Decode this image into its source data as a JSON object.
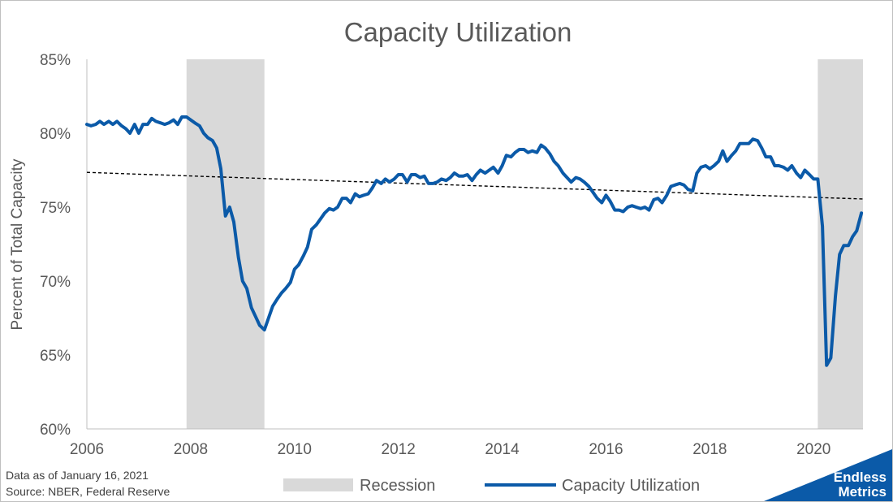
{
  "chart_data": {
    "type": "line",
    "title": "Capacity Utilization",
    "ylabel": "Percent of Total Capacity",
    "xlabel": "",
    "xlim": [
      2006,
      2020.95
    ],
    "ylim": [
      60,
      85
    ],
    "y_ticks": [
      60,
      65,
      70,
      75,
      80,
      85
    ],
    "y_tick_labels": [
      "60%",
      "65%",
      "70%",
      "75%",
      "80%",
      "85%"
    ],
    "x_ticks": [
      2006,
      2008,
      2010,
      2012,
      2014,
      2016,
      2018,
      2020
    ],
    "x_tick_labels": [
      "2006",
      "2008",
      "2010",
      "2012",
      "2014",
      "2016",
      "2018",
      "2020"
    ],
    "grid": false,
    "legend_position": "bottom",
    "recessions": [
      {
        "start": 2007.92,
        "end": 2009.42
      },
      {
        "start": 2020.08,
        "end": 2020.95
      }
    ],
    "series": [
      {
        "name": "Capacity Utilization",
        "color": "#0b5aa8",
        "x": [
          2006.0,
          2006.08,
          2006.17,
          2006.25,
          2006.33,
          2006.42,
          2006.5,
          2006.58,
          2006.67,
          2006.75,
          2006.83,
          2006.92,
          2007.0,
          2007.08,
          2007.17,
          2007.25,
          2007.33,
          2007.42,
          2007.5,
          2007.58,
          2007.67,
          2007.75,
          2007.83,
          2007.92,
          2008.0,
          2008.08,
          2008.17,
          2008.25,
          2008.33,
          2008.42,
          2008.5,
          2008.58,
          2008.67,
          2008.75,
          2008.83,
          2008.92,
          2009.0,
          2009.08,
          2009.17,
          2009.25,
          2009.33,
          2009.42,
          2009.5,
          2009.58,
          2009.67,
          2009.75,
          2009.83,
          2009.92,
          2010.0,
          2010.08,
          2010.17,
          2010.25,
          2010.33,
          2010.42,
          2010.5,
          2010.58,
          2010.67,
          2010.75,
          2010.83,
          2010.92,
          2011.0,
          2011.08,
          2011.17,
          2011.25,
          2011.33,
          2011.42,
          2011.5,
          2011.58,
          2011.67,
          2011.75,
          2011.83,
          2011.92,
          2012.0,
          2012.08,
          2012.17,
          2012.25,
          2012.33,
          2012.42,
          2012.5,
          2012.58,
          2012.67,
          2012.75,
          2012.83,
          2012.92,
          2013.0,
          2013.08,
          2013.17,
          2013.25,
          2013.33,
          2013.42,
          2013.5,
          2013.58,
          2013.67,
          2013.75,
          2013.83,
          2013.92,
          2014.0,
          2014.08,
          2014.17,
          2014.25,
          2014.33,
          2014.42,
          2014.5,
          2014.58,
          2014.67,
          2014.75,
          2014.83,
          2014.92,
          2015.0,
          2015.08,
          2015.17,
          2015.25,
          2015.33,
          2015.42,
          2015.5,
          2015.58,
          2015.67,
          2015.75,
          2015.83,
          2015.92,
          2016.0,
          2016.08,
          2016.17,
          2016.25,
          2016.33,
          2016.42,
          2016.5,
          2016.58,
          2016.67,
          2016.75,
          2016.83,
          2016.92,
          2017.0,
          2017.08,
          2017.17,
          2017.25,
          2017.33,
          2017.42,
          2017.5,
          2017.58,
          2017.67,
          2017.75,
          2017.83,
          2017.92,
          2018.0,
          2018.08,
          2018.17,
          2018.25,
          2018.33,
          2018.42,
          2018.5,
          2018.58,
          2018.67,
          2018.75,
          2018.83,
          2018.92,
          2019.0,
          2019.08,
          2019.17,
          2019.25,
          2019.33,
          2019.42,
          2019.5,
          2019.58,
          2019.67,
          2019.75,
          2019.83,
          2019.92,
          2020.0,
          2020.08,
          2020.17,
          2020.25,
          2020.33,
          2020.42,
          2020.5,
          2020.58,
          2020.67,
          2020.75,
          2020.83,
          2020.92
        ],
        "values": [
          80.6,
          80.5,
          80.6,
          80.8,
          80.6,
          80.8,
          80.6,
          80.8,
          80.5,
          80.3,
          80.0,
          80.6,
          80.0,
          80.6,
          80.6,
          81.0,
          80.8,
          80.7,
          80.6,
          80.7,
          80.9,
          80.6,
          81.1,
          81.1,
          80.9,
          80.7,
          80.5,
          80.0,
          79.7,
          79.5,
          79.0,
          77.6,
          74.4,
          75.0,
          74.0,
          71.6,
          70.0,
          69.5,
          68.2,
          67.6,
          67.0,
          66.7,
          67.5,
          68.3,
          68.8,
          69.2,
          69.5,
          69.9,
          70.8,
          71.1,
          71.7,
          72.3,
          73.5,
          73.8,
          74.2,
          74.6,
          74.9,
          74.8,
          75.0,
          75.6,
          75.6,
          75.3,
          75.9,
          75.7,
          75.8,
          75.9,
          76.3,
          76.8,
          76.6,
          76.9,
          76.7,
          76.9,
          77.2,
          77.2,
          76.7,
          77.2,
          77.2,
          77.0,
          77.1,
          76.6,
          76.6,
          76.7,
          76.9,
          76.8,
          77.0,
          77.3,
          77.1,
          77.1,
          77.2,
          76.8,
          77.2,
          77.5,
          77.3,
          77.5,
          77.7,
          77.3,
          77.8,
          78.5,
          78.4,
          78.7,
          78.9,
          78.9,
          78.7,
          78.8,
          78.7,
          79.2,
          79.0,
          78.6,
          78.1,
          77.8,
          77.3,
          77.0,
          76.7,
          77.0,
          76.9,
          76.7,
          76.4,
          76.0,
          75.6,
          75.3,
          75.8,
          75.4,
          74.8,
          74.8,
          74.7,
          75.0,
          75.1,
          75.0,
          74.9,
          75.0,
          74.8,
          75.5,
          75.6,
          75.3,
          75.8,
          76.4,
          76.5,
          76.6,
          76.5,
          76.2,
          76.1,
          77.3,
          77.7,
          77.8,
          77.6,
          77.8,
          78.1,
          78.8,
          78.1,
          78.5,
          78.8,
          79.3,
          79.3,
          79.3,
          79.6,
          79.5,
          79.0,
          78.4,
          78.4,
          77.8,
          77.8,
          77.7,
          77.5,
          77.8,
          77.3,
          77.0,
          77.5,
          77.2,
          76.9,
          76.9,
          73.7,
          64.3,
          64.8,
          69.0,
          71.8,
          72.4,
          72.4,
          73.0,
          73.4,
          74.6
        ]
      }
    ],
    "trendline": {
      "start": [
        2006.0,
        77.35
      ],
      "end": [
        2020.95,
        75.55
      ],
      "style": "dashed",
      "color": "#000000"
    },
    "legend": [
      {
        "label": "Recession",
        "type": "area",
        "color": "#d9d9d9"
      },
      {
        "label": "Capacity Utilization",
        "type": "line",
        "color": "#0b5aa8"
      }
    ]
  },
  "footer": {
    "line1": "Data as of January 16, 2021",
    "line2": "Source: NBER, Federal Reserve"
  },
  "brand": {
    "line1": "Endless",
    "line2": "Metrics",
    "color": "#0b5aa8"
  }
}
